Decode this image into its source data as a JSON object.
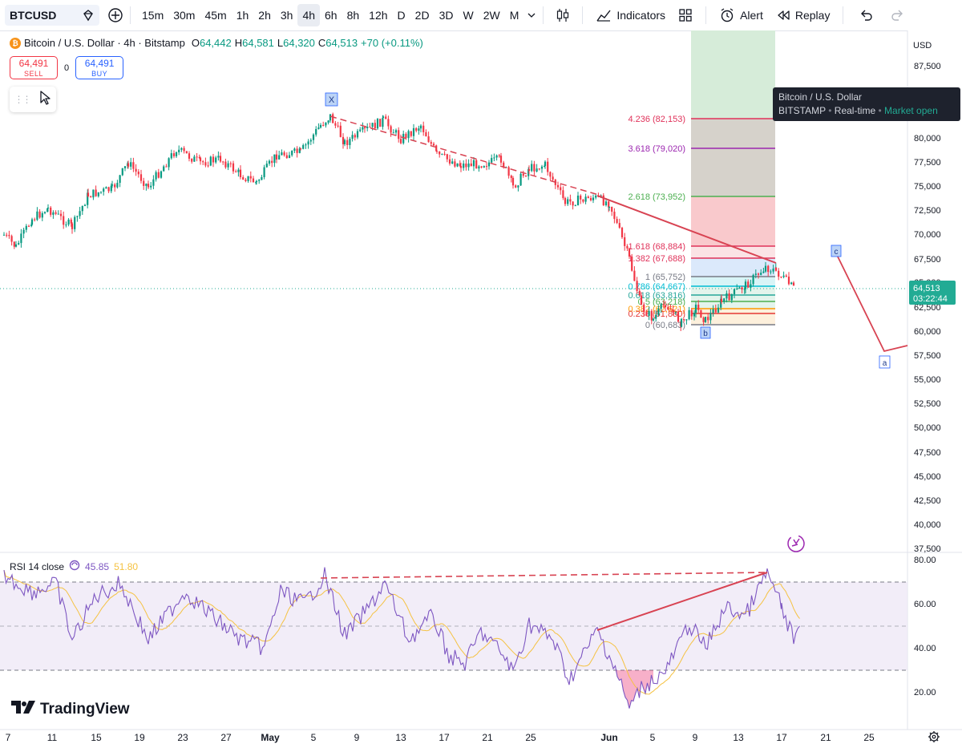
{
  "toolbar": {
    "symbol": "BTCUSD",
    "timeframes": [
      "15m",
      "30m",
      "45m",
      "1h",
      "2h",
      "3h",
      "4h",
      "6h",
      "8h",
      "12h",
      "D",
      "2D",
      "3D",
      "W",
      "2W",
      "M"
    ],
    "active_timeframe": "4h",
    "indicators_label": "Indicators",
    "alert_label": "Alert",
    "replay_label": "Replay"
  },
  "legend": {
    "title": "Bitcoin / U.S. Dollar · 4h · Bitstamp",
    "open_label": "O",
    "open": "64,442",
    "high_label": "H",
    "high": "64,581",
    "low_label": "L",
    "low": "64,320",
    "close_label": "C",
    "close": "64,513",
    "change": "+70 (+0.11%)"
  },
  "trade": {
    "sell_price": "64,491",
    "sell_label": "SELL",
    "spread": "0",
    "buy_price": "64,491",
    "buy_label": "BUY"
  },
  "tooltip": {
    "title": "Bitcoin / U.S. Dollar",
    "exchange": "BITSTAMP",
    "realtime": "Real-time",
    "market": "Market open"
  },
  "price_axis": {
    "currency": "USD",
    "ticks": [
      "87,500",
      "80,000",
      "77,500",
      "75,000",
      "72,500",
      "70,000",
      "67,500",
      "65,000",
      "62,500",
      "60,000",
      "57,500",
      "55,000",
      "52,500",
      "50,000",
      "47,500",
      "45,000",
      "42,500",
      "40,000",
      "37,500"
    ],
    "current_price": "64,513",
    "countdown": "03:22:44"
  },
  "fib_levels": [
    {
      "label": "4.236 (82,153)",
      "color": "#e0325a"
    },
    {
      "label": "3.618 (79,020)",
      "color": "#9c27b0"
    },
    {
      "label": "2.618 (73,952)",
      "color": "#4caf50"
    },
    {
      "label": "1.618 (68,884)",
      "color": "#e0325a"
    },
    {
      "label": "1.382 (67,688)",
      "color": "#e0325a"
    },
    {
      "label": "1 (65,752)",
      "color": "#787b86"
    },
    {
      "label": "0.786 (64,667)",
      "color": "#00bcd4"
    },
    {
      "label": "0.618 (63,816)",
      "color": "#26a69a"
    },
    {
      "label": "0.5 (63,218)",
      "color": "#4caf50"
    },
    {
      "label": "0.382 (62,621)",
      "color": "#ff9800"
    },
    {
      "label": "0.236 (61,880)",
      "color": "#e53935"
    },
    {
      "label": "0 (60,683)",
      "color": "#787b86"
    }
  ],
  "wave_labels": {
    "x": "X",
    "b": "b",
    "c": "c",
    "a": "a"
  },
  "rsi": {
    "title": "RSI 14 close",
    "value": "45.85",
    "ma_value": "51.80",
    "ticks": [
      "80.00",
      "60.00",
      "40.00",
      "20.00"
    ],
    "line_color": "#7e57c2",
    "ma_color": "#f5c242"
  },
  "time_axis": [
    "7",
    "11",
    "15",
    "19",
    "23",
    "27",
    "May",
    "5",
    "9",
    "13",
    "17",
    "21",
    "25",
    "Jun",
    "5",
    "9",
    "13",
    "17",
    "21",
    "25"
  ],
  "branding": "TradingView",
  "colors": {
    "up": "#089981",
    "down": "#f23645",
    "trend": "#d84352"
  }
}
